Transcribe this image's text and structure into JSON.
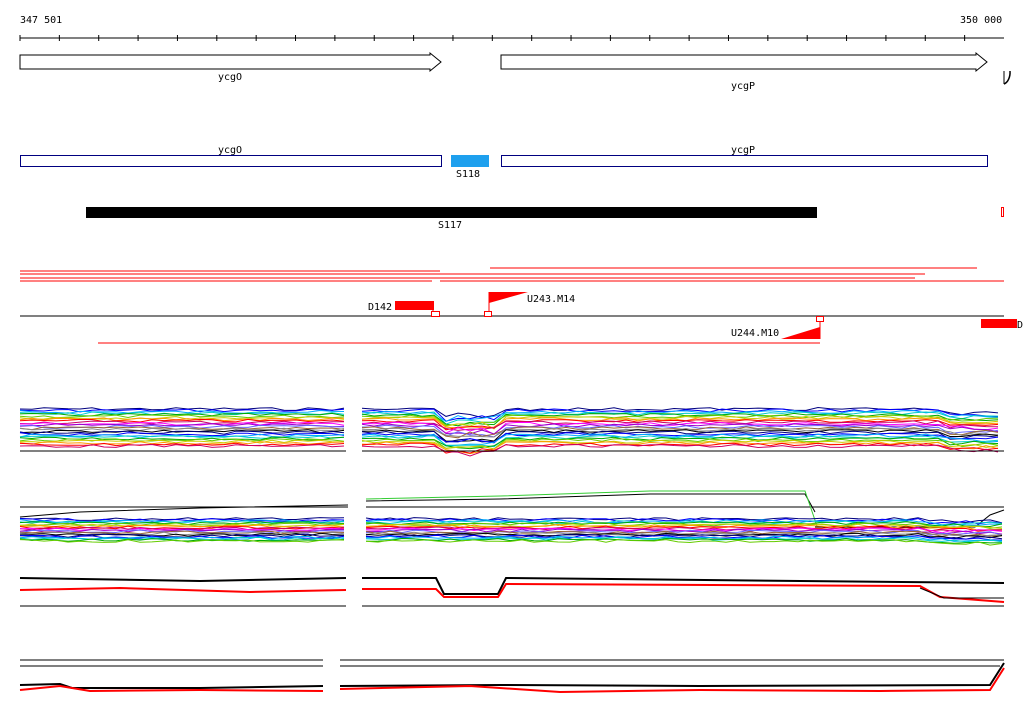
{
  "ruler": {
    "start_label": "347 501",
    "end_label": "350 000"
  },
  "genes_arrows": [
    {
      "label": "ycgO",
      "strand": "+"
    },
    {
      "label": "ycgP",
      "strand": "+"
    }
  ],
  "genes_boxes": [
    {
      "label": "ycgO"
    },
    {
      "label": "ycgP"
    }
  ],
  "segments": [
    {
      "label": "S118",
      "color": "#1ea0ee"
    },
    {
      "label": "S117",
      "color": "#000000"
    }
  ],
  "features": [
    {
      "label": "D142",
      "color": "#ff0000"
    },
    {
      "label": "U243.M14",
      "color": "#ff0000"
    },
    {
      "label": "U244.M10",
      "color": "#ff0000"
    },
    {
      "label": "D",
      "color": "#ff0000"
    }
  ],
  "track_colors": [
    "#000080",
    "#0000ff",
    "#00aaff",
    "#00cccc",
    "#00aa00",
    "#66cc00",
    "#cccc00",
    "#ff9900",
    "#ff0000",
    "#cc0066",
    "#ff00ff",
    "#9900cc",
    "#6666ff",
    "#996633",
    "#888888",
    "#000000"
  ]
}
